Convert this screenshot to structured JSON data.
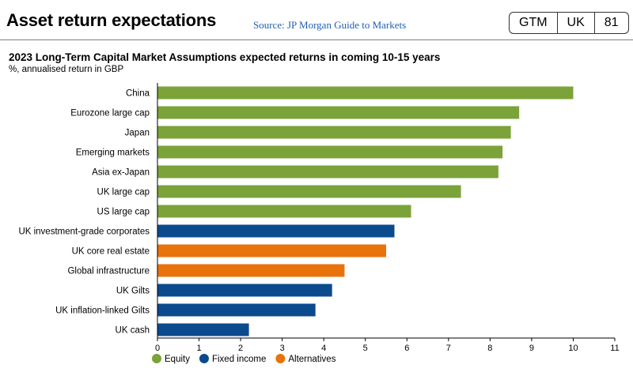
{
  "header": {
    "title": "Asset return expectations",
    "source": "Source: JP Morgan Guide to Markets",
    "badge": [
      "GTM",
      "UK",
      "81"
    ]
  },
  "chart_data": {
    "type": "bar",
    "orientation": "horizontal",
    "title": "2023 Long-Term Capital Market Assumptions expected returns in coming 10-15 years",
    "subtitle": "%, annualised return in GBP",
    "categories": [
      "China",
      "Eurozone large cap",
      "Japan",
      "Emerging markets",
      "Asia ex-Japan",
      "UK large cap",
      "US large cap",
      "UK investment-grade corporates",
      "UK core real estate",
      "Global infrastructure",
      "UK Gilts",
      "UK inflation-linked Gilts",
      "UK cash"
    ],
    "values": [
      10.0,
      8.7,
      8.5,
      8.3,
      8.2,
      7.3,
      6.1,
      5.7,
      5.5,
      4.5,
      4.2,
      3.8,
      2.2
    ],
    "groups": [
      "Equity",
      "Equity",
      "Equity",
      "Equity",
      "Equity",
      "Equity",
      "Equity",
      "Fixed income",
      "Alternatives",
      "Alternatives",
      "Fixed income",
      "Fixed income",
      "Fixed income"
    ],
    "legend": [
      {
        "name": "Equity",
        "color": "#7ba33a"
      },
      {
        "name": "Fixed income",
        "color": "#0c4a8e"
      },
      {
        "name": "Alternatives",
        "color": "#e8730c"
      }
    ],
    "xlim": [
      0,
      11
    ],
    "xticks": [
      0,
      1,
      2,
      3,
      4,
      5,
      6,
      7,
      8,
      9,
      10,
      11
    ],
    "grid": false,
    "legend_position": "bottom-left"
  }
}
